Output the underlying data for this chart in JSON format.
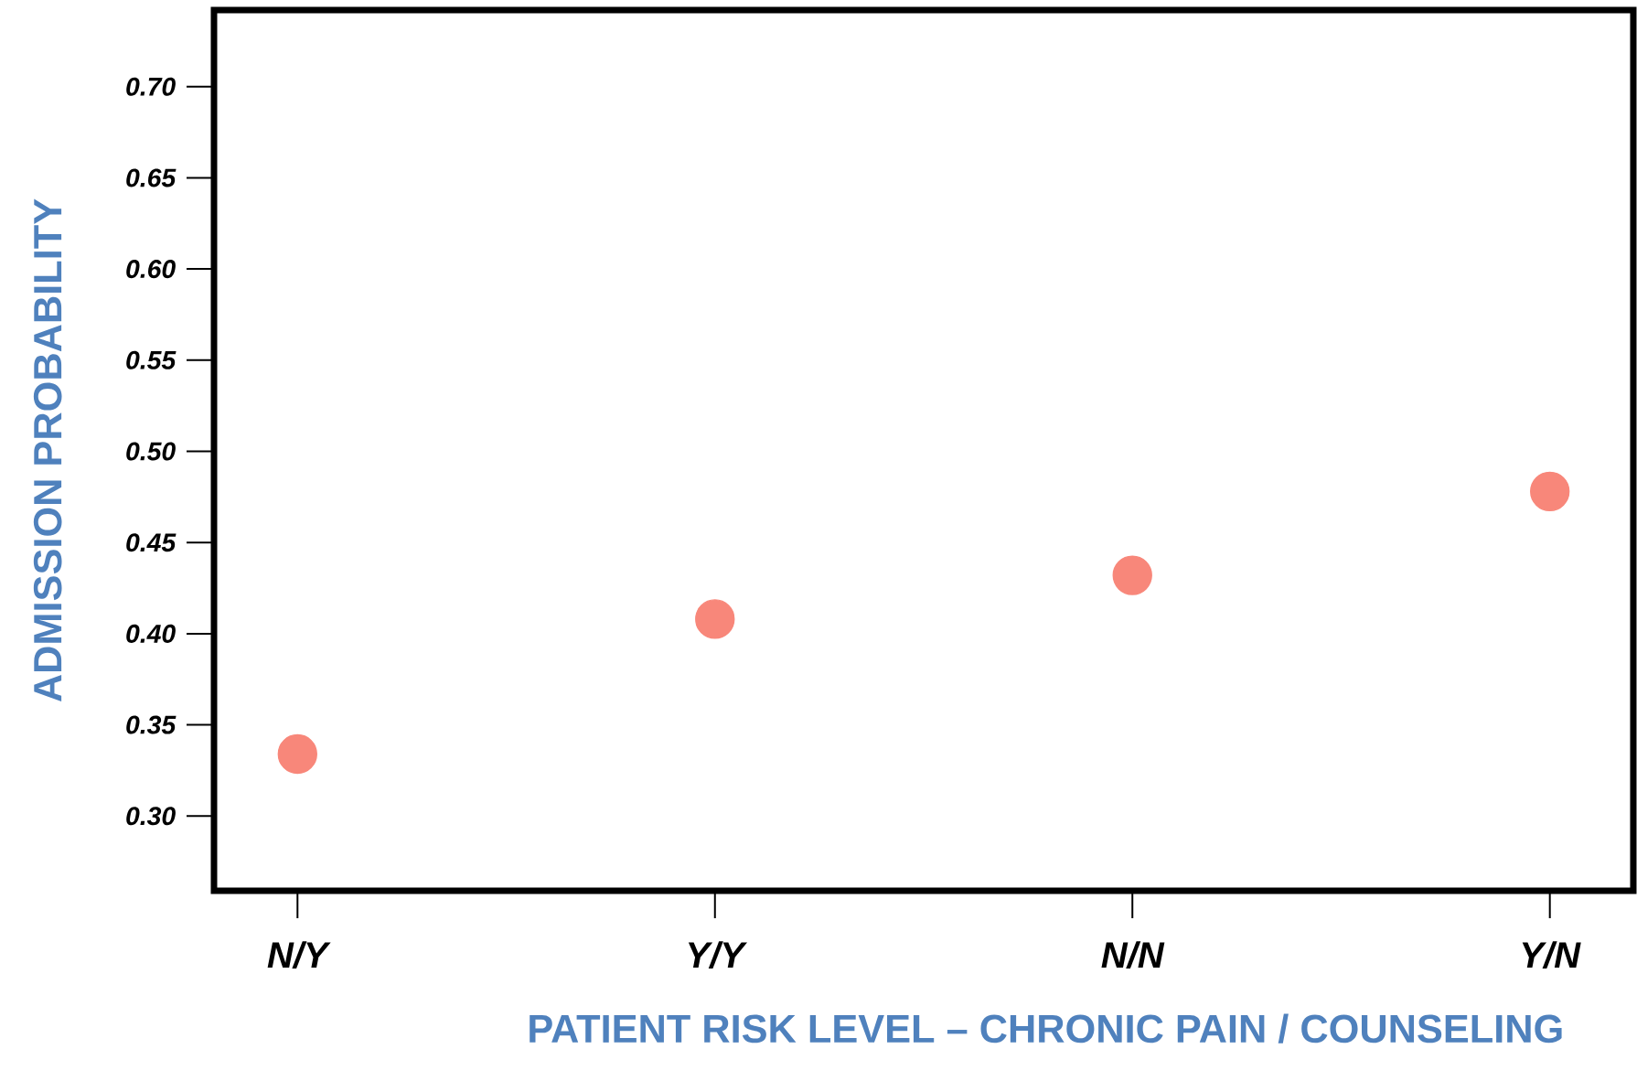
{
  "chart_data": {
    "type": "scatter",
    "xlabel": "PATIENT RISK LEVEL – CHRONIC PAIN / COUNSELING",
    "ylabel": "ADMISSION PROBABILITY",
    "categories": [
      "N/Y",
      "Y/Y",
      "N/N",
      "Y/N"
    ],
    "values": [
      0.334,
      0.408,
      0.432,
      0.478
    ],
    "color": "#f8877a",
    "ylim": [
      0.259,
      0.742
    ],
    "yticks": [
      {
        "value": 0.3,
        "label": "0.30"
      },
      {
        "value": 0.35,
        "label": "0.35"
      },
      {
        "value": 0.4,
        "label": "0.40"
      },
      {
        "value": 0.45,
        "label": "0.45"
      },
      {
        "value": 0.5,
        "label": "0.50"
      },
      {
        "value": 0.55,
        "label": "0.55"
      },
      {
        "value": 0.6,
        "label": "0.60"
      },
      {
        "value": 0.65,
        "label": "0.65"
      },
      {
        "value": 0.7,
        "label": "0.70"
      }
    ]
  }
}
